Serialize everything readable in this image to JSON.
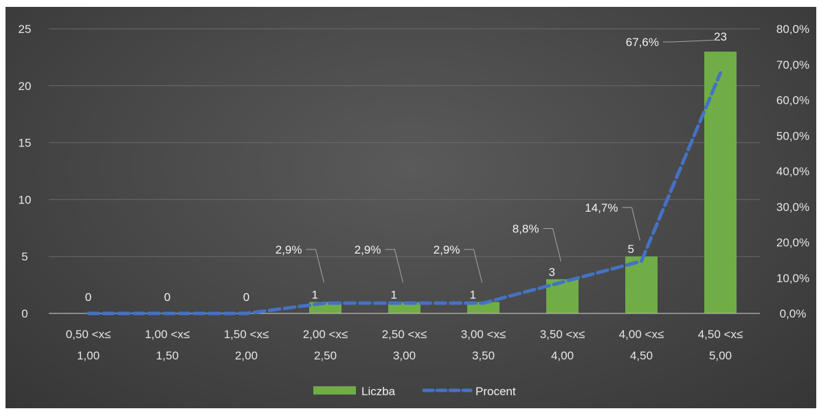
{
  "chart_data": {
    "type": "bar",
    "categories": [
      [
        "0,50 <x≤",
        "1,00"
      ],
      [
        "1,00 <x≤",
        "1,50"
      ],
      [
        "1,50 <x≤",
        "2,00"
      ],
      [
        "2,00 <x≤",
        "2,50"
      ],
      [
        "2,50 <x≤",
        "3,00"
      ],
      [
        "3,00 <x≤",
        "3,50"
      ],
      [
        "3,50 <x≤",
        "4,00"
      ],
      [
        "4,00 <x≤",
        "4,50"
      ],
      [
        "4,50 <x≤",
        "5,00"
      ]
    ],
    "series": [
      {
        "name": "Liczba",
        "type": "bar",
        "axis": "left",
        "color": "#70ad47",
        "values": [
          0,
          0,
          0,
          1,
          1,
          1,
          3,
          5,
          23
        ],
        "labels": [
          "0",
          "0",
          "0",
          "1",
          "1",
          "1",
          "3",
          "5",
          "23"
        ]
      },
      {
        "name": "Procent",
        "type": "line",
        "style": "dashed",
        "axis": "right",
        "color": "#4472c4",
        "values": [
          0,
          0,
          0,
          2.9,
          2.9,
          2.9,
          8.8,
          14.7,
          67.6
        ],
        "labels": [
          "",
          "",
          "",
          "2,9%",
          "2,9%",
          "2,9%",
          "8,8%",
          "14,7%",
          "67,6%"
        ]
      }
    ],
    "y_left": {
      "ylim": [
        0,
        25
      ],
      "ticks": [
        0,
        5,
        10,
        15,
        20,
        25
      ],
      "tick_labels": [
        "0",
        "5",
        "10",
        "15",
        "20",
        "25"
      ]
    },
    "y_right": {
      "ylim": [
        0,
        80
      ],
      "ticks": [
        0,
        10,
        20,
        30,
        40,
        50,
        60,
        70,
        80
      ],
      "tick_labels": [
        "0,0%",
        "10,0%",
        "20,0%",
        "30,0%",
        "40,0%",
        "50,0%",
        "60,0%",
        "70,0%",
        "80,0%"
      ]
    },
    "title": "",
    "xlabel": "",
    "ylabel": "",
    "grid": true,
    "legend": {
      "position": "bottom",
      "entries": [
        "Liczba",
        "Procent"
      ]
    }
  }
}
